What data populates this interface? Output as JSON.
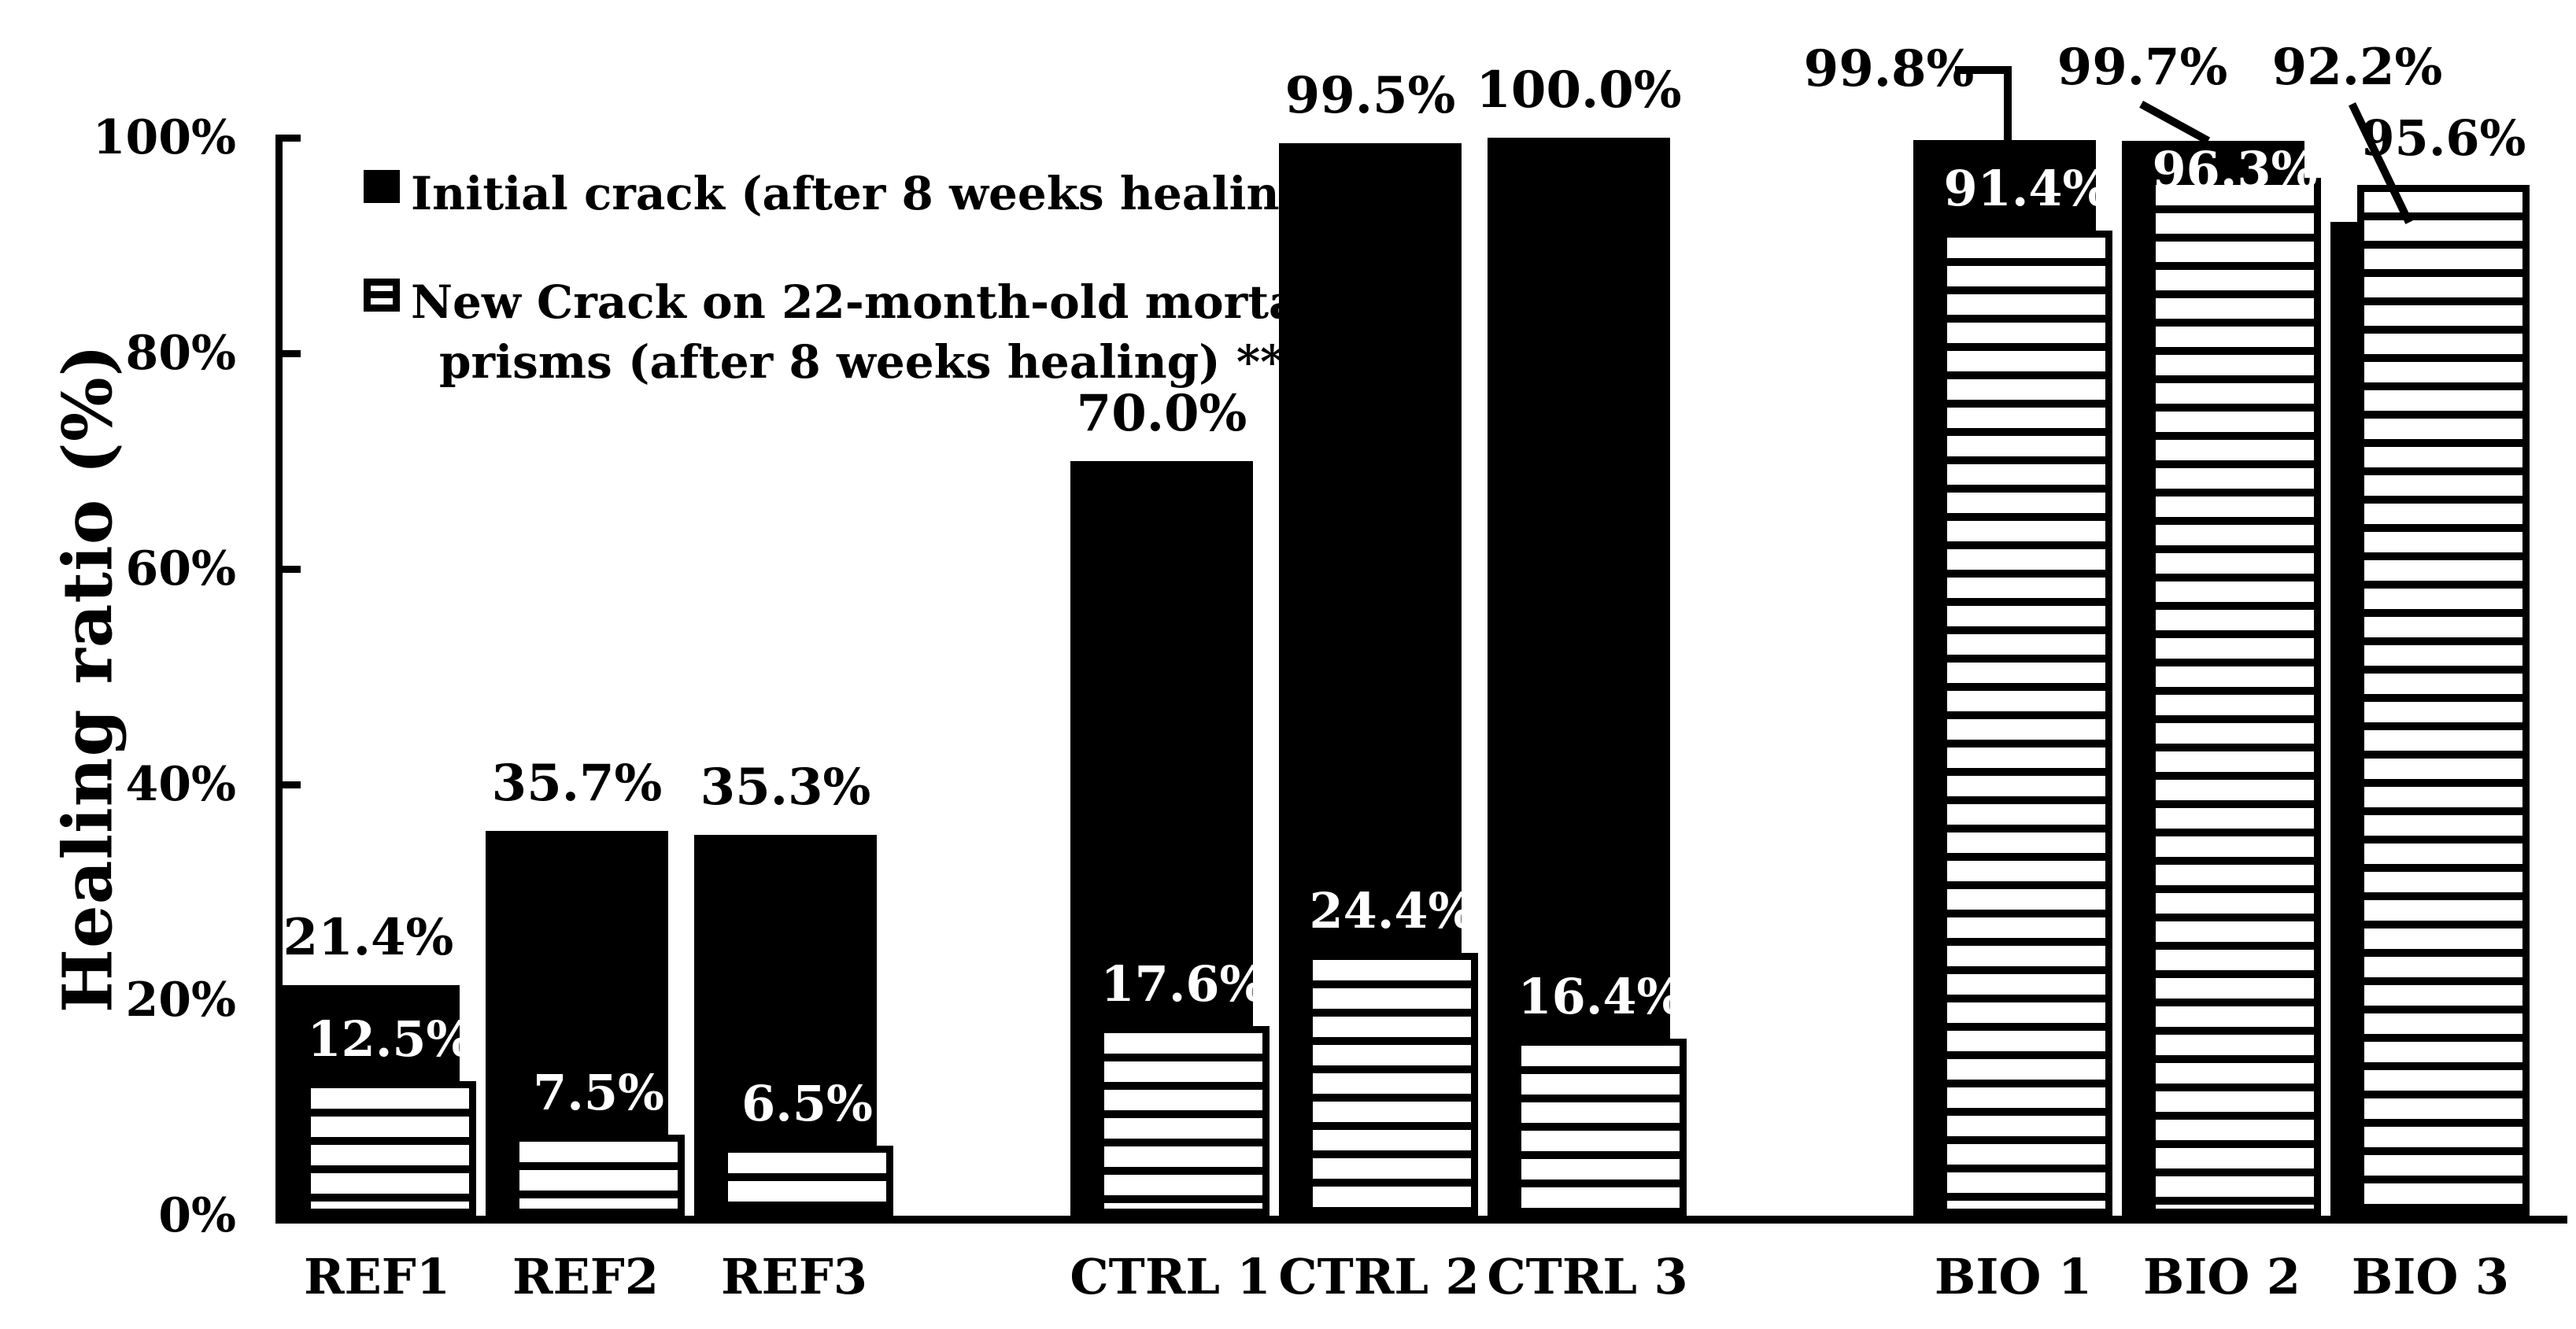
{
  "figure": {
    "background_color": "#ffffff",
    "ink_color": "#000000"
  },
  "y_axis": {
    "title": "Healing ratio (%)",
    "tick_labels": [
      "0%",
      "20%",
      "40%",
      "60%",
      "80%",
      "100%"
    ],
    "tick_values": [
      0,
      20,
      40,
      60,
      80,
      100
    ]
  },
  "legend": {
    "items": [
      {
        "swatch": "solid-black-square",
        "label": "Initial crack (after 8 weeks healing) *"
      },
      {
        "swatch": "striped-square",
        "line1": "New Crack on 22-month-old mortar",
        "line2": "prisms  (after 8 weeks healing) **"
      }
    ]
  },
  "chart_data": {
    "type": "bar",
    "subtype": "overlapped-pairs",
    "title": "",
    "ylabel": "Healing ratio (%)",
    "xlabel": "",
    "ylim": [
      0,
      100
    ],
    "grid": false,
    "legend_position": "top-left",
    "categories": [
      "REF1",
      "REF2",
      "REF3",
      "CTRL 1",
      "CTRL 2",
      "CTRL 3",
      "BIO 1",
      "BIO 2",
      "BIO 3"
    ],
    "group_labels": [
      "REF",
      "CTRL",
      "BIO"
    ],
    "y_tick_labels": [
      "0%",
      "20%",
      "40%",
      "60%",
      "80%",
      "100%"
    ],
    "series": [
      {
        "name": "Initial crack (after 8 weeks healing) *",
        "style": "solid-black",
        "values": [
          21.4,
          35.7,
          35.3,
          70.0,
          99.5,
          100.0,
          99.8,
          99.7,
          92.2
        ],
        "value_labels": [
          "21.4%",
          "35.7%",
          "35.3%",
          "70.0%",
          "99.5%",
          "100.0%",
          "99.8%",
          "99.7%",
          "92.2%"
        ]
      },
      {
        "name": "New Crack on 22-month-old mortar prisms (after 8 weeks healing) **",
        "style": "horizontal-black-white-stripes",
        "values": [
          12.5,
          7.5,
          6.5,
          17.6,
          24.4,
          16.4,
          91.4,
          96.3,
          95.6
        ],
        "value_labels": [
          "12.5%",
          "7.5%",
          "6.5%",
          "17.6%",
          "24.4%",
          "16.4%",
          "91.4%",
          "96.3%",
          "95.6%"
        ]
      }
    ],
    "leader_line_categories": [
      "BIO 1",
      "BIO 2",
      "BIO 3"
    ]
  }
}
